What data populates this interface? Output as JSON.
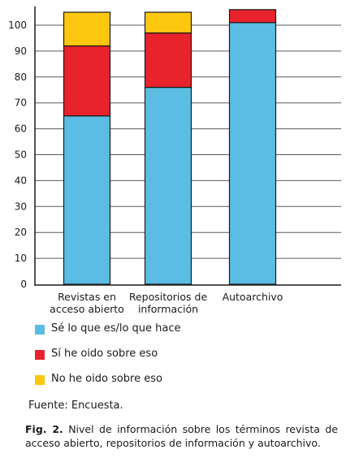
{
  "chart_data": {
    "type": "bar",
    "stacked": true,
    "categories": [
      [
        "Revistas en",
        "acceso abierto"
      ],
      [
        "Repositorios de",
        "información"
      ],
      [
        "Autoarchivo"
      ]
    ],
    "series": [
      {
        "name": "Sé lo que es/lo que hace",
        "color": "#5bbde3",
        "values": [
          65,
          76,
          101
        ]
      },
      {
        "name": "Sí he oido sobre eso",
        "color": "#e8232b",
        "values": [
          27,
          21,
          5
        ]
      },
      {
        "name": "No he oido sobre eso",
        "color": "#fcc70e",
        "values": [
          13,
          8,
          0
        ]
      }
    ],
    "ylim": [
      0,
      104
    ],
    "yticks": [
      0,
      10,
      20,
      30,
      40,
      50,
      60,
      70,
      80,
      90,
      100
    ],
    "grid": true,
    "legend_position": "bottom-left"
  },
  "source": "Fuente: Encuesta.",
  "caption": {
    "label": "Fig. 2.",
    "text": " Nivel de información sobre los términos revista de acceso abierto, repositorios de información y autoarchivo."
  }
}
